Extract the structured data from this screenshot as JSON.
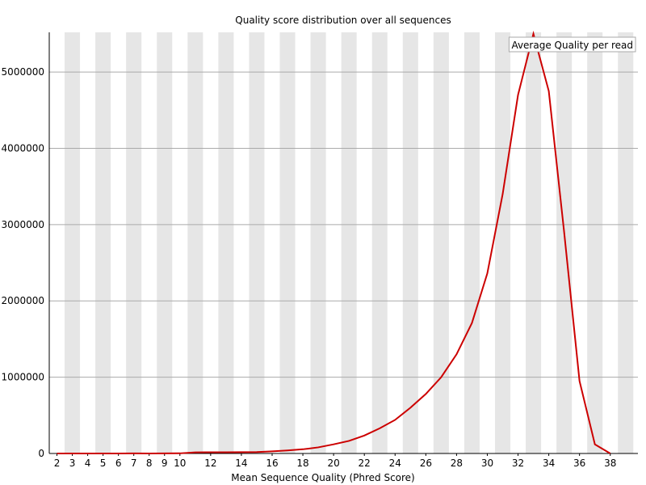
{
  "chart_data": {
    "type": "line",
    "title": "Quality score distribution over all sequences",
    "x_label": "Mean Sequence Quality (Phred Score)",
    "x": [
      2,
      3,
      4,
      5,
      6,
      7,
      8,
      9,
      10,
      11,
      12,
      13,
      14,
      15,
      16,
      17,
      18,
      19,
      20,
      21,
      22,
      23,
      24,
      25,
      26,
      27,
      28,
      29,
      30,
      31,
      32,
      33,
      34,
      35,
      36,
      37,
      38
    ],
    "series": [
      {
        "name": "Average Quality per read",
        "color": "#cc0000",
        "values": [
          0,
          0,
          0,
          0,
          0,
          1000,
          0,
          1000,
          2000,
          15000,
          16000,
          16000,
          17000,
          18000,
          28000,
          40000,
          55000,
          80000,
          120000,
          165000,
          235000,
          330000,
          440000,
          600000,
          780000,
          1000000,
          1300000,
          1710000,
          2360000,
          3400000,
          4700000,
          5500000,
          4750000,
          2900000,
          950000,
          120000,
          0
        ]
      }
    ],
    "xlim": [
      1.5,
      39.8
    ],
    "xticks": [
      2,
      3,
      4,
      5,
      6,
      7,
      8,
      9,
      10,
      12,
      14,
      16,
      18,
      20,
      22,
      24,
      26,
      28,
      30,
      32,
      34,
      36,
      38
    ],
    "ylim": [
      0,
      5520000
    ],
    "yticks": [
      0,
      1000000,
      2000000,
      3000000,
      4000000,
      5000000
    ],
    "grid": true,
    "legend_position": "top-right"
  }
}
